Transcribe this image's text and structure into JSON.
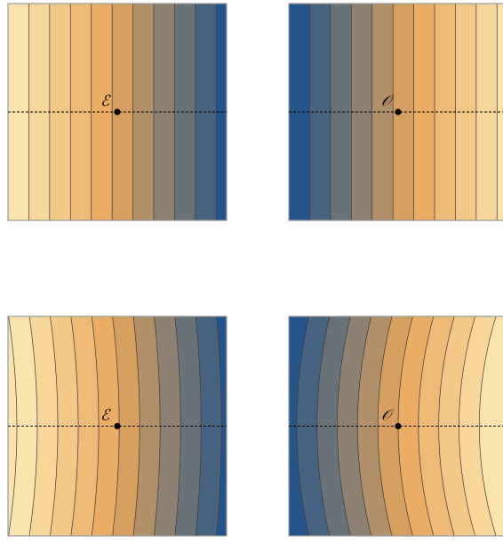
{
  "panels": [
    {
      "id": "top-left",
      "label": "ℰ",
      "pattern": "vertical-bands",
      "gradient": "light-to-dark"
    },
    {
      "id": "top-right",
      "label": "𝒪",
      "pattern": "vertical-bands",
      "gradient": "dark-to-light"
    },
    {
      "id": "bottom-left",
      "label": "ℰ",
      "pattern": "curved-bands",
      "gradient": "light-to-dark"
    },
    {
      "id": "bottom-right",
      "label": "𝒪",
      "pattern": "curved-bands",
      "gradient": "dark-to-light"
    }
  ],
  "colors": {
    "light": "#fbe3ad",
    "mid": "#e7a65c",
    "dark": "#23548a",
    "contour_line": "#3a3a3a",
    "frame": "#9a9a9a"
  }
}
